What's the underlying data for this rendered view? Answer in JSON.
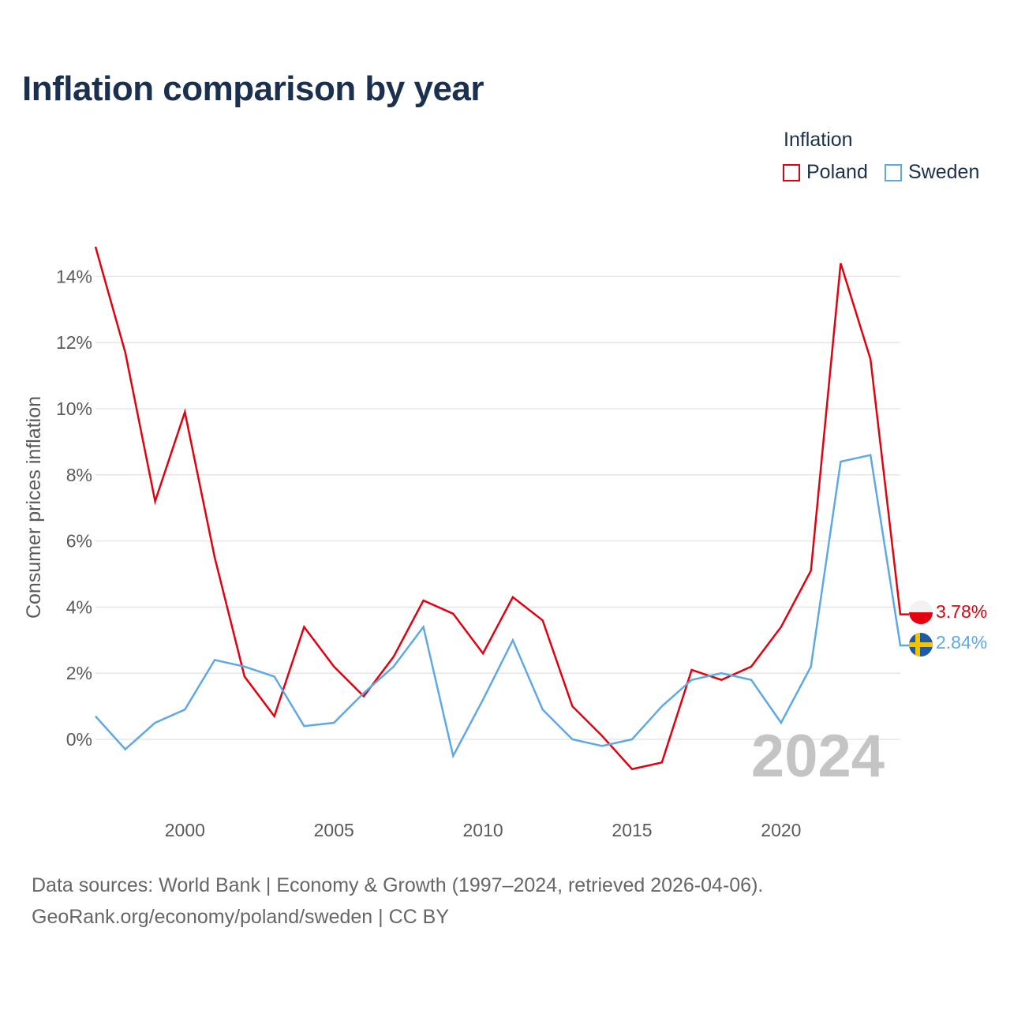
{
  "header": {
    "title": "Inflation comparison by year"
  },
  "legend": {
    "title": "Inflation",
    "items": [
      {
        "label": "Poland",
        "color": "#e3000f"
      },
      {
        "label": "Sweden",
        "color": "#5fa8e6"
      }
    ]
  },
  "chart_data": {
    "type": "line",
    "title": "Inflation comparison by year",
    "xlabel": "",
    "ylabel": "Consumer prices inflation",
    "x": [
      1997,
      1998,
      1999,
      2000,
      2001,
      2002,
      2003,
      2004,
      2005,
      2006,
      2007,
      2008,
      2009,
      2010,
      2011,
      2012,
      2013,
      2014,
      2015,
      2016,
      2017,
      2018,
      2019,
      2020,
      2021,
      2022,
      2023,
      2024
    ],
    "xlim": [
      1997,
      2024
    ],
    "ylim": [
      -2,
      15
    ],
    "x_ticks": [
      2000,
      2005,
      2010,
      2015,
      2020
    ],
    "x_tick_labels": [
      "2000",
      "2005",
      "2010",
      "2015",
      "2020"
    ],
    "y_ticks": [
      0,
      2,
      4,
      6,
      8,
      10,
      12,
      14
    ],
    "y_tick_labels": [
      "0%",
      "2%",
      "4%",
      "6%",
      "8%",
      "10%",
      "12%",
      "14%"
    ],
    "grid": true,
    "series": [
      {
        "name": "Poland",
        "color": "#e3000f",
        "values": [
          14.9,
          11.7,
          7.2,
          9.9,
          5.5,
          1.9,
          0.7,
          3.4,
          2.2,
          1.3,
          2.5,
          4.2,
          3.8,
          2.6,
          4.3,
          3.6,
          1.0,
          0.1,
          -0.9,
          -0.7,
          2.1,
          1.8,
          2.2,
          3.4,
          5.1,
          14.4,
          11.5,
          3.78
        ],
        "end_label": "3.78%"
      },
      {
        "name": "Sweden",
        "color": "#5fa8e6",
        "values": [
          0.7,
          -0.3,
          0.5,
          0.9,
          2.4,
          2.2,
          1.9,
          0.4,
          0.5,
          1.4,
          2.2,
          3.4,
          -0.5,
          1.2,
          3.0,
          0.9,
          0.0,
          -0.2,
          0.0,
          1.0,
          1.8,
          2.0,
          1.8,
          0.5,
          2.2,
          8.4,
          8.6,
          2.84
        ],
        "end_label": "2.84%"
      }
    ],
    "watermark_year": "2024"
  },
  "footer": {
    "line1": "Data sources: World Bank | Economy & Growth (1997–2024, retrieved 2026-04-06).",
    "line2": "GeoRank.org/economy/poland/sweden | CC BY"
  }
}
